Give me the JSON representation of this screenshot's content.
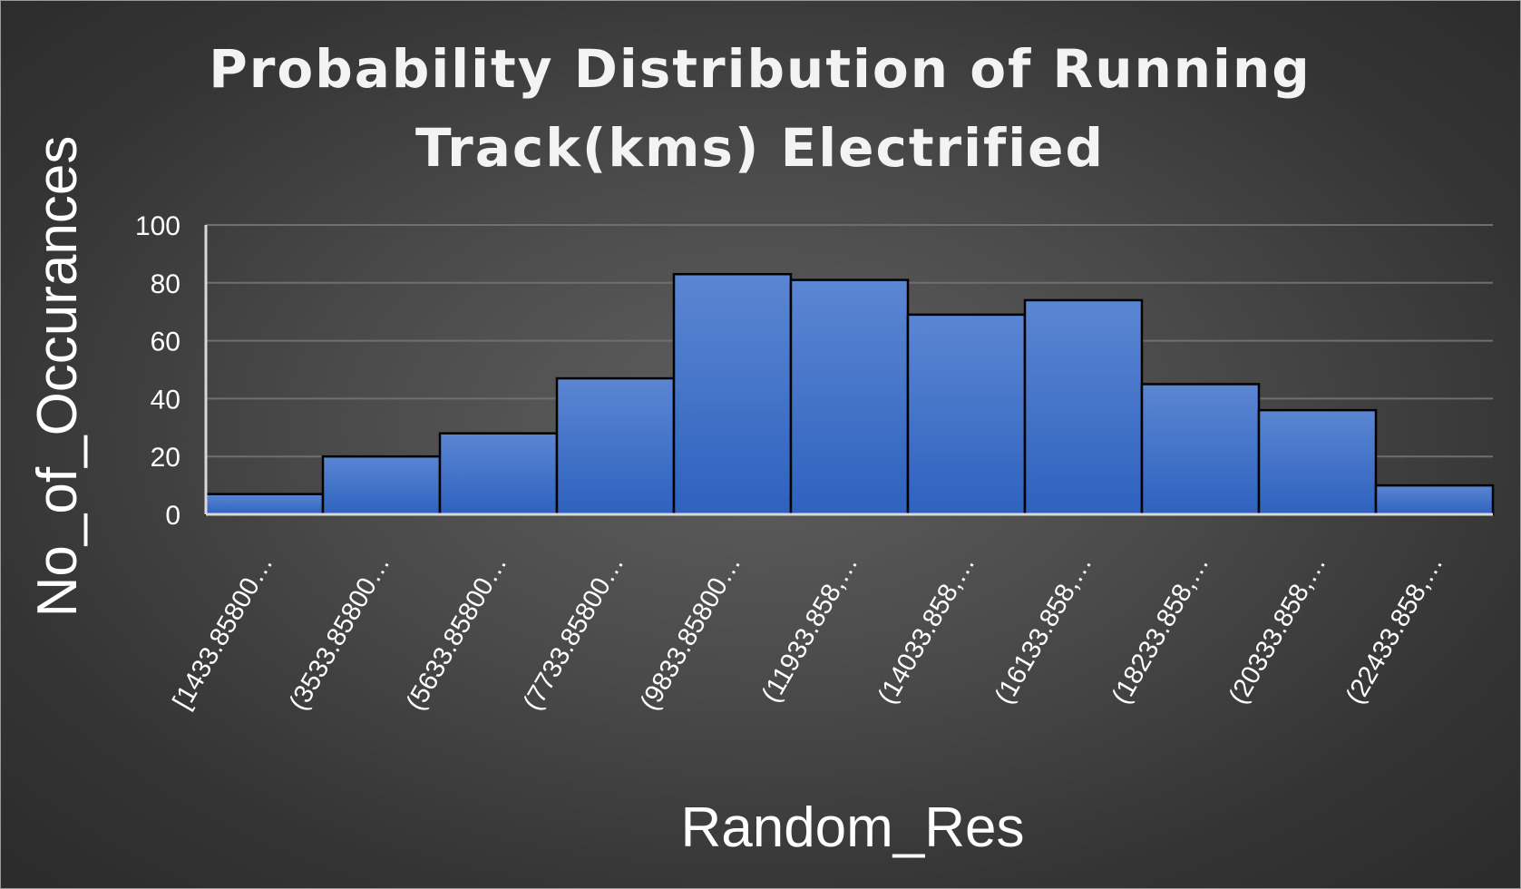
{
  "chart_data": {
    "type": "bar",
    "title_lines": [
      "Probability Distribution of  Running",
      "Track(kms) Electrified"
    ],
    "xlabel": "Random_Res",
    "ylabel": "No_of_Occurances",
    "categories": [
      "[1433.85800…",
      "(3533.85800…",
      "(5633.85800…",
      "(7733.85800…",
      "(9833.85800…",
      "(11933.858,…",
      "(14033.858,…",
      "(16133.858,…",
      "(18233.858,…",
      "(20333.858,…",
      "(22433.858,…"
    ],
    "values": [
      7,
      20,
      28,
      47,
      83,
      81,
      69,
      74,
      45,
      36,
      10
    ],
    "ylim": [
      0,
      100
    ],
    "yticks": [
      0,
      20,
      40,
      60,
      80,
      100
    ],
    "grid": true,
    "legend": "none",
    "colors": {
      "bar_top": "#5b86d2",
      "bar_bottom": "#2e62bf",
      "bar_outline": "#000000",
      "background": "#484848"
    }
  }
}
